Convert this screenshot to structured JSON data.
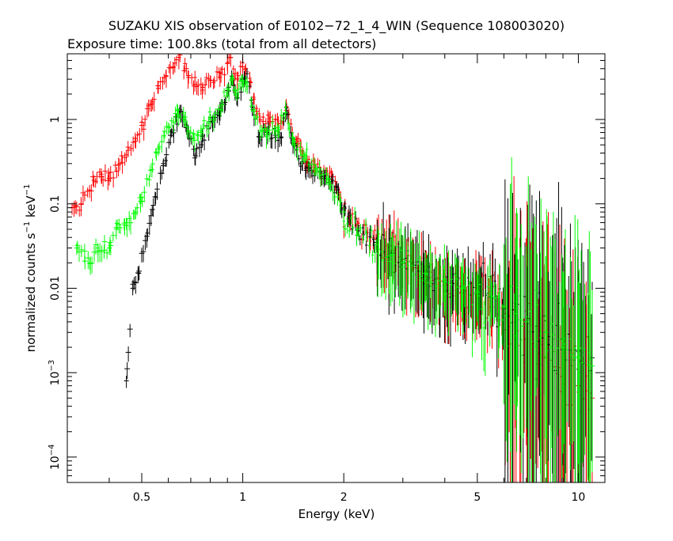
{
  "chart_data": {
    "type": "scatter",
    "title": "SUZAKU XIS observation of E0102−72_1_4_WIN (Sequence 108003020)",
    "subtitle": "Exposure time: 100.8ks (total from all detectors)",
    "xlabel": "Energy (keV)",
    "ylabel_main": "normalized counts s",
    "ylabel_sup1": "−1",
    "ylabel_mid": " keV",
    "ylabel_sup2": "−1",
    "x_scale": "log",
    "y_scale": "log",
    "xlim": [
      0.3,
      12
    ],
    "ylim": [
      5e-05,
      6
    ],
    "x_ticks": [
      {
        "value": 0.5,
        "label": "0.5"
      },
      {
        "value": 1,
        "label": "1"
      },
      {
        "value": 2,
        "label": "2"
      },
      {
        "value": 5,
        "label": "5"
      },
      {
        "value": 10,
        "label": "10"
      }
    ],
    "y_ticks": [
      {
        "value": 1,
        "label": "1"
      },
      {
        "value": 0.1,
        "label": "0.1"
      },
      {
        "value": 0.01,
        "label": "0.01"
      },
      {
        "value": 0.001,
        "base": "10",
        "exp": "−3"
      },
      {
        "value": 0.0001,
        "base": "10",
        "exp": "−4"
      }
    ],
    "grid": false,
    "series": [
      {
        "color": "#ff0000",
        "points": [
          [
            0.31,
            0.09
          ],
          [
            0.33,
            0.1
          ],
          [
            0.36,
            0.19
          ],
          [
            0.38,
            0.21
          ],
          [
            0.4,
            0.2
          ],
          [
            0.43,
            0.3
          ],
          [
            0.45,
            0.38
          ],
          [
            0.48,
            0.55
          ],
          [
            0.5,
            0.85
          ],
          [
            0.53,
            1.5
          ],
          [
            0.56,
            2.5
          ],
          [
            0.59,
            3.3
          ],
          [
            0.62,
            4.2
          ],
          [
            0.65,
            5.8
          ],
          [
            0.68,
            4.0
          ],
          [
            0.72,
            2.6
          ],
          [
            0.76,
            2.4
          ],
          [
            0.8,
            2.9
          ],
          [
            0.85,
            3.6
          ],
          [
            0.9,
            4.6
          ],
          [
            0.92,
            5.4
          ],
          [
            0.95,
            3.5
          ],
          [
            1.0,
            4.2
          ],
          [
            1.02,
            4.0
          ],
          [
            1.05,
            2.8
          ],
          [
            1.1,
            1.25
          ],
          [
            1.15,
            0.95
          ],
          [
            1.2,
            0.95
          ],
          [
            1.25,
            1.0
          ],
          [
            1.3,
            0.9
          ],
          [
            1.35,
            1.4
          ],
          [
            1.45,
            0.55
          ],
          [
            1.55,
            0.32
          ],
          [
            1.7,
            0.24
          ],
          [
            1.85,
            0.21
          ],
          [
            2.0,
            0.09
          ],
          [
            2.2,
            0.055
          ],
          [
            2.5,
            0.038
          ],
          [
            2.8,
            0.028
          ],
          [
            3.0,
            0.022
          ],
          [
            3.5,
            0.016
          ],
          [
            4.0,
            0.011
          ],
          [
            4.5,
            0.009
          ],
          [
            5.0,
            0.008
          ],
          [
            5.5,
            0.006
          ],
          [
            6.0,
            0.005
          ],
          [
            6.5,
            0.004
          ],
          [
            7.0,
            0.0025
          ],
          [
            8.0,
            0.0015
          ],
          [
            9.0,
            0.0009
          ],
          [
            10.0,
            0.0007
          ],
          [
            11.0,
            0.0005
          ]
        ]
      },
      {
        "color": "#000000",
        "points": [
          [
            0.45,
            0.0008
          ],
          [
            0.47,
            0.01
          ],
          [
            0.49,
            0.015
          ],
          [
            0.52,
            0.045
          ],
          [
            0.55,
            0.12
          ],
          [
            0.58,
            0.3
          ],
          [
            0.62,
            0.75
          ],
          [
            0.65,
            1.3
          ],
          [
            0.68,
            0.8
          ],
          [
            0.72,
            0.35
          ],
          [
            0.76,
            0.65
          ],
          [
            0.8,
            0.95
          ],
          [
            0.85,
            1.2
          ],
          [
            0.9,
            2.2
          ],
          [
            0.93,
            3.0
          ],
          [
            0.96,
            1.8
          ],
          [
            1.0,
            3.0
          ],
          [
            1.03,
            2.8
          ],
          [
            1.07,
            1.4
          ],
          [
            1.12,
            0.62
          ],
          [
            1.18,
            0.7
          ],
          [
            1.25,
            0.65
          ],
          [
            1.3,
            0.62
          ],
          [
            1.35,
            1.2
          ],
          [
            1.4,
            0.6
          ],
          [
            1.5,
            0.3
          ],
          [
            1.6,
            0.25
          ],
          [
            1.75,
            0.2
          ],
          [
            1.9,
            0.16
          ],
          [
            2.0,
            0.085
          ],
          [
            2.2,
            0.05
          ],
          [
            2.5,
            0.035
          ],
          [
            2.8,
            0.026
          ],
          [
            3.0,
            0.02
          ],
          [
            3.5,
            0.016
          ],
          [
            4.0,
            0.012
          ],
          [
            4.5,
            0.01
          ],
          [
            5.0,
            0.009
          ],
          [
            5.5,
            0.008
          ],
          [
            6.0,
            0.006
          ],
          [
            6.5,
            0.005
          ],
          [
            7.0,
            0.004
          ],
          [
            8.0,
            0.003
          ],
          [
            9.0,
            0.0025
          ],
          [
            10.0,
            0.0018
          ],
          [
            11.0,
            0.0015
          ]
        ]
      },
      {
        "color": "#00ff00",
        "points": [
          [
            0.32,
            0.03
          ],
          [
            0.35,
            0.02
          ],
          [
            0.37,
            0.03
          ],
          [
            0.4,
            0.03
          ],
          [
            0.42,
            0.05
          ],
          [
            0.45,
            0.06
          ],
          [
            0.48,
            0.08
          ],
          [
            0.5,
            0.12
          ],
          [
            0.53,
            0.25
          ],
          [
            0.56,
            0.45
          ],
          [
            0.6,
            0.8
          ],
          [
            0.64,
            1.3
          ],
          [
            0.67,
            1.0
          ],
          [
            0.71,
            0.6
          ],
          [
            0.75,
            0.7
          ],
          [
            0.8,
            1.0
          ],
          [
            0.86,
            1.3
          ],
          [
            0.9,
            2.3
          ],
          [
            0.93,
            3.1
          ],
          [
            0.96,
            2.0
          ],
          [
            1.0,
            2.9
          ],
          [
            1.03,
            2.7
          ],
          [
            1.08,
            1.3
          ],
          [
            1.14,
            0.75
          ],
          [
            1.2,
            0.75
          ],
          [
            1.27,
            0.8
          ],
          [
            1.34,
            1.2
          ],
          [
            1.42,
            0.55
          ],
          [
            1.52,
            0.38
          ],
          [
            1.65,
            0.26
          ],
          [
            1.8,
            0.2
          ],
          [
            2.0,
            0.08
          ],
          [
            2.2,
            0.05
          ],
          [
            2.5,
            0.033
          ],
          [
            2.8,
            0.025
          ],
          [
            3.0,
            0.02
          ],
          [
            3.5,
            0.015
          ],
          [
            4.0,
            0.012
          ],
          [
            4.5,
            0.01
          ],
          [
            5.0,
            0.009
          ],
          [
            5.5,
            0.008
          ],
          [
            6.0,
            0.006
          ],
          [
            6.5,
            0.005
          ],
          [
            7.0,
            0.004
          ],
          [
            8.0,
            0.003
          ],
          [
            9.0,
            0.002
          ],
          [
            10.0,
            0.0015
          ],
          [
            11.0,
            0.0012
          ]
        ]
      }
    ]
  }
}
